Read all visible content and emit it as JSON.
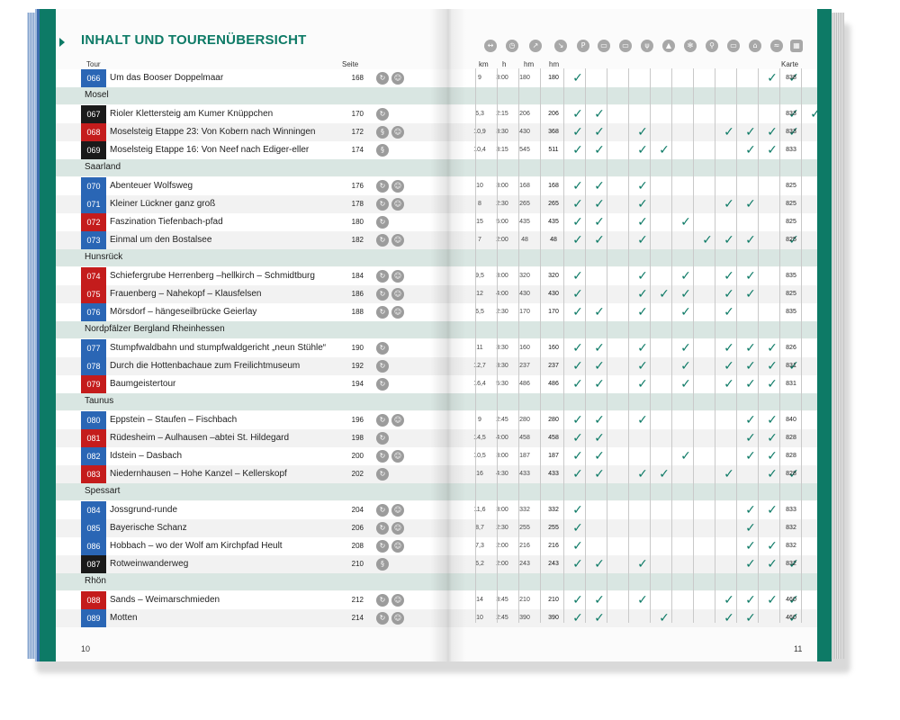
{
  "title": "INHALT UND TOURENÜBERSICHT",
  "headers": {
    "tour": "Tour",
    "seite": "Seite",
    "km": "km",
    "h": "h",
    "hm_up": "hm",
    "hm_down": "hm",
    "karte": "Karte"
  },
  "icon_names": [
    "distance-icon",
    "time-icon",
    "ascent-icon",
    "descent-icon",
    "parking-icon",
    "bus-icon",
    "train-icon",
    "restaurant-icon",
    "hut-icon",
    "winter-icon",
    "bike-icon",
    "car-icon",
    "museum-icon",
    "swim-icon",
    "map-icon"
  ],
  "colors": {
    "accent": "#0d7a66",
    "blue": "#2a66b5",
    "red": "#c41c1c",
    "black": "#1a1a1a",
    "region_bg": "#d9e6e2"
  },
  "page_left": "10",
  "page_right": "11",
  "rows": [
    {
      "kind": "tour",
      "num": "066",
      "color": "blue",
      "name": "Um das Booser Doppelmaar",
      "page": "168",
      "sym": [
        "c",
        "b"
      ],
      "km": "9",
      "h": "3:00",
      "hm1": "180",
      "hm2": "180",
      "checks": [
        1,
        0,
        0,
        0,
        0,
        0,
        0,
        0,
        0,
        1,
        1,
        0
      ],
      "karte": "838"
    },
    {
      "kind": "region",
      "name": "Mosel"
    },
    {
      "kind": "tour",
      "num": "067",
      "color": "black",
      "name": "Rioler Klettersteig am Kumer Knüppchen",
      "page": "170",
      "sym": [
        "c"
      ],
      "km": "6,3",
      "h": "2:15",
      "hm1": "206",
      "hm2": "206",
      "checks": [
        1,
        1,
        0,
        0,
        0,
        0,
        0,
        0,
        0,
        0,
        1,
        1
      ],
      "karte": "833"
    },
    {
      "kind": "tour",
      "num": "068",
      "color": "red",
      "name": "Moselsteig Etappe 23: Von Kobern nach Winningen",
      "page": "172",
      "sym": [
        "s",
        "b"
      ],
      "km": "10,9",
      "h": "3:30",
      "hm1": "430",
      "hm2": "368",
      "checks": [
        1,
        1,
        0,
        1,
        0,
        0,
        0,
        1,
        1,
        1,
        1,
        0
      ],
      "karte": "833"
    },
    {
      "kind": "tour",
      "num": "069",
      "color": "black",
      "name": "Moselsteig Etappe 16: Von Neef nach Ediger-eller",
      "page": "174",
      "sym": [
        "s"
      ],
      "km": "10,4",
      "h": "3:15",
      "hm1": "545",
      "hm2": "511",
      "checks": [
        1,
        1,
        0,
        1,
        1,
        0,
        0,
        0,
        1,
        1,
        0,
        0
      ],
      "karte": "833"
    },
    {
      "kind": "region",
      "name": "Saarland"
    },
    {
      "kind": "tour",
      "num": "070",
      "color": "blue",
      "name": "Abenteuer Wolfsweg",
      "page": "176",
      "sym": [
        "c",
        "b"
      ],
      "km": "10",
      "h": "3:00",
      "hm1": "168",
      "hm2": "168",
      "checks": [
        1,
        1,
        0,
        1,
        0,
        0,
        0,
        0,
        0,
        0,
        0,
        0
      ],
      "karte": "825"
    },
    {
      "kind": "tour",
      "num": "071",
      "color": "blue",
      "name": "Kleiner Lückner ganz groß",
      "page": "178",
      "sym": [
        "c",
        "b"
      ],
      "km": "8",
      "h": "2:30",
      "hm1": "265",
      "hm2": "265",
      "checks": [
        1,
        1,
        0,
        1,
        0,
        0,
        0,
        1,
        1,
        0,
        0,
        0
      ],
      "karte": "825"
    },
    {
      "kind": "tour",
      "num": "072",
      "color": "red",
      "name": "Faszination Tiefenbach-pfad",
      "page": "180",
      "sym": [
        "c"
      ],
      "km": "15",
      "h": "5:00",
      "hm1": "435",
      "hm2": "435",
      "checks": [
        1,
        1,
        0,
        1,
        0,
        1,
        0,
        0,
        0,
        0,
        0,
        0
      ],
      "karte": "825"
    },
    {
      "kind": "tour",
      "num": "073",
      "color": "blue",
      "name": "Einmal um den Bostalsee",
      "page": "182",
      "sym": [
        "c",
        "b"
      ],
      "km": "7",
      "h": "2:00",
      "hm1": "48",
      "hm2": "48",
      "checks": [
        1,
        1,
        0,
        1,
        0,
        0,
        1,
        1,
        1,
        0,
        1,
        0
      ],
      "karte": "825"
    },
    {
      "kind": "region",
      "name": "Hunsrück"
    },
    {
      "kind": "tour",
      "num": "074",
      "color": "red",
      "name": "Schiefergrube Herrenberg –hellkirch – Schmidtburg",
      "page": "184",
      "sym": [
        "c",
        "b"
      ],
      "km": "9,5",
      "h": "3:00",
      "hm1": "320",
      "hm2": "320",
      "checks": [
        1,
        0,
        0,
        1,
        0,
        1,
        0,
        1,
        1,
        0,
        0,
        0
      ],
      "karte": "835"
    },
    {
      "kind": "tour",
      "num": "075",
      "color": "red",
      "name": "Frauenberg – Nahekopf – Klausfelsen",
      "page": "186",
      "sym": [
        "c",
        "b"
      ],
      "km": "12",
      "h": "4:00",
      "hm1": "430",
      "hm2": "430",
      "checks": [
        1,
        0,
        0,
        1,
        1,
        1,
        0,
        1,
        1,
        0,
        0,
        0
      ],
      "karte": "825"
    },
    {
      "kind": "tour",
      "num": "076",
      "color": "blue",
      "name": "Mörsdorf – hängeseilbrücke Geierlay",
      "page": "188",
      "sym": [
        "c",
        "b"
      ],
      "km": "6,5",
      "h": "2:30",
      "hm1": "170",
      "hm2": "170",
      "checks": [
        1,
        1,
        0,
        1,
        0,
        1,
        0,
        1,
        0,
        0,
        0,
        0
      ],
      "karte": "835"
    },
    {
      "kind": "region",
      "name": "Nordpfälzer Bergland Rheinhessen"
    },
    {
      "kind": "tour",
      "num": "077",
      "color": "blue",
      "name": "Stumpfwaldbahn und stumpfwaldgericht „neun Stühle“",
      "page": "190",
      "sym": [
        "c"
      ],
      "km": "11",
      "h": "3:30",
      "hm1": "160",
      "hm2": "160",
      "checks": [
        1,
        1,
        0,
        1,
        0,
        1,
        0,
        1,
        1,
        1,
        0,
        0
      ],
      "karte": "826"
    },
    {
      "kind": "tour",
      "num": "078",
      "color": "blue",
      "name": "Durch die Hottenbachaue zum Freilichtmuseum",
      "page": "192",
      "sym": [
        "c"
      ],
      "km": "12,7",
      "h": "3:30",
      "hm1": "237",
      "hm2": "237",
      "checks": [
        1,
        1,
        0,
        1,
        0,
        1,
        0,
        1,
        1,
        1,
        1,
        0
      ],
      "karte": "831"
    },
    {
      "kind": "tour",
      "num": "079",
      "color": "red",
      "name": "Baumgeistertour",
      "page": "194",
      "sym": [
        "c"
      ],
      "km": "16,4",
      "h": "5:30",
      "hm1": "486",
      "hm2": "486",
      "checks": [
        1,
        1,
        0,
        1,
        0,
        1,
        0,
        1,
        1,
        1,
        0,
        0
      ],
      "karte": "831"
    },
    {
      "kind": "region",
      "name": "Taunus"
    },
    {
      "kind": "tour",
      "num": "080",
      "color": "blue",
      "name": "Eppstein – Staufen – Fischbach",
      "page": "196",
      "sym": [
        "c",
        "b"
      ],
      "km": "9",
      "h": "2:45",
      "hm1": "280",
      "hm2": "280",
      "checks": [
        1,
        1,
        0,
        1,
        0,
        0,
        0,
        0,
        1,
        1,
        0,
        0
      ],
      "karte": "840"
    },
    {
      "kind": "tour",
      "num": "081",
      "color": "red",
      "name": "Rüdesheim – Aulhausen –abtei St. Hildegard",
      "page": "198",
      "sym": [
        "c"
      ],
      "km": "14,5",
      "h": "4:00",
      "hm1": "458",
      "hm2": "458",
      "checks": [
        1,
        1,
        0,
        0,
        0,
        0,
        0,
        0,
        1,
        1,
        0,
        0
      ],
      "karte": "828"
    },
    {
      "kind": "tour",
      "num": "082",
      "color": "blue",
      "name": "Idstein – Dasbach",
      "page": "200",
      "sym": [
        "c",
        "b"
      ],
      "km": "10,5",
      "h": "3:00",
      "hm1": "187",
      "hm2": "187",
      "checks": [
        1,
        1,
        0,
        0,
        0,
        1,
        0,
        0,
        1,
        1,
        0,
        0
      ],
      "karte": "828"
    },
    {
      "kind": "tour",
      "num": "083",
      "color": "red",
      "name": "Niedernhausen – Hohe Kanzel – Kellerskopf",
      "page": "202",
      "sym": [
        "c"
      ],
      "km": "16",
      "h": "4:30",
      "hm1": "433",
      "hm2": "433",
      "checks": [
        1,
        1,
        0,
        1,
        1,
        0,
        0,
        1,
        0,
        1,
        1,
        0
      ],
      "karte": "828"
    },
    {
      "kind": "region",
      "name": "Spessart"
    },
    {
      "kind": "tour",
      "num": "084",
      "color": "blue",
      "name": "Jossgrund-runde",
      "page": "204",
      "sym": [
        "c",
        "b"
      ],
      "km": "11,6",
      "h": "3:00",
      "hm1": "332",
      "hm2": "332",
      "checks": [
        1,
        0,
        0,
        0,
        0,
        0,
        0,
        0,
        1,
        1,
        0,
        0
      ],
      "karte": "833"
    },
    {
      "kind": "tour",
      "num": "085",
      "color": "blue",
      "name": "Bayerische Schanz",
      "page": "206",
      "sym": [
        "c",
        "b"
      ],
      "km": "8,7",
      "h": "2:30",
      "hm1": "255",
      "hm2": "255",
      "checks": [
        1,
        0,
        0,
        0,
        0,
        0,
        0,
        0,
        1,
        0,
        0,
        0
      ],
      "karte": "832"
    },
    {
      "kind": "tour",
      "num": "086",
      "color": "blue",
      "name": "Hobbach – wo der Wolf am Kirchpfad Heult",
      "page": "208",
      "sym": [
        "c",
        "b"
      ],
      "km": "7,3",
      "h": "2:00",
      "hm1": "216",
      "hm2": "216",
      "checks": [
        1,
        0,
        0,
        0,
        0,
        0,
        0,
        0,
        1,
        1,
        0,
        0
      ],
      "karte": "832"
    },
    {
      "kind": "tour",
      "num": "087",
      "color": "black",
      "name": "Rotweinwanderweg",
      "page": "210",
      "sym": [
        "s"
      ],
      "km": "6,2",
      "h": "2:00",
      "hm1": "243",
      "hm2": "243",
      "checks": [
        1,
        1,
        0,
        1,
        0,
        0,
        0,
        0,
        1,
        1,
        1,
        0
      ],
      "karte": "832"
    },
    {
      "kind": "region",
      "name": "Rhön"
    },
    {
      "kind": "tour",
      "num": "088",
      "color": "red",
      "name": "Sands – Weimarschmieden",
      "page": "212",
      "sym": [
        "c",
        "b"
      ],
      "km": "14",
      "h": "3:45",
      "hm1": "210",
      "hm2": "210",
      "checks": [
        1,
        1,
        0,
        1,
        0,
        0,
        0,
        1,
        1,
        1,
        1,
        0
      ],
      "karte": "460"
    },
    {
      "kind": "tour",
      "num": "089",
      "color": "blue",
      "name": "Motten",
      "page": "214",
      "sym": [
        "c",
        "b"
      ],
      "km": "10",
      "h": "2:45",
      "hm1": "390",
      "hm2": "390",
      "checks": [
        1,
        1,
        0,
        0,
        1,
        0,
        0,
        1,
        1,
        0,
        1,
        0
      ],
      "karte": "460"
    }
  ]
}
